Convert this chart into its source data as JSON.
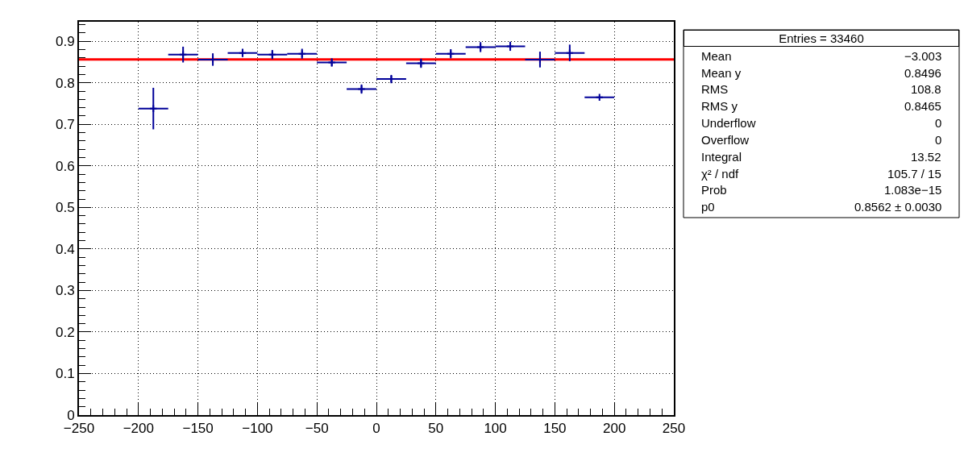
{
  "chart_data": {
    "type": "scatter",
    "x": [
      -187.5,
      -162.5,
      -137.5,
      -112.5,
      -87.5,
      -62.5,
      -37.5,
      -12.5,
      12.5,
      37.5,
      62.5,
      87.5,
      112.5,
      137.5,
      162.5,
      187.5
    ],
    "series": [
      {
        "color": "#000099",
        "marker": "cross",
        "values": [
          0.738,
          0.868,
          0.856,
          0.872,
          0.868,
          0.87,
          0.849,
          0.785,
          0.809,
          0.847,
          0.87,
          0.886,
          0.888,
          0.856,
          0.872,
          0.765
        ],
        "errors": [
          0.05,
          0.019,
          0.015,
          0.01,
          0.011,
          0.012,
          0.01,
          0.011,
          0.01,
          0.011,
          0.011,
          0.012,
          0.011,
          0.019,
          0.02,
          null
        ],
        "xerrors": [
          12.5,
          12.5,
          12.5,
          12.5,
          12.5,
          12.5,
          12.5,
          12.5,
          12.5,
          12.5,
          12.5,
          12.5,
          12.5,
          12.5,
          12.5,
          12.5
        ]
      },
      {
        "type": "line",
        "color": "#ff0000",
        "x": [
          -250,
          250
        ],
        "values": [
          0.8562,
          0.8562
        ]
      }
    ],
    "grid": true,
    "xlim": [
      -250,
      250
    ],
    "ylim": [
      0,
      0.947
    ],
    "xticks": [
      {
        "value": -250,
        "label": "−250"
      },
      {
        "value": -240,
        "label": null
      },
      {
        "value": -230,
        "label": null
      },
      {
        "value": -220,
        "label": null
      },
      {
        "value": -210,
        "label": null
      },
      {
        "value": -200,
        "label": "−200"
      },
      {
        "value": -190,
        "label": null
      },
      {
        "value": -180,
        "label": null
      },
      {
        "value": -170,
        "label": null
      },
      {
        "value": -160,
        "label": null
      },
      {
        "value": -150,
        "label": "−150"
      },
      {
        "value": -140,
        "label": null
      },
      {
        "value": -130,
        "label": null
      },
      {
        "value": -120,
        "label": null
      },
      {
        "value": -110,
        "label": null
      },
      {
        "value": -100,
        "label": "−100"
      },
      {
        "value": -90,
        "label": null
      },
      {
        "value": -80,
        "label": null
      },
      {
        "value": -70,
        "label": null
      },
      {
        "value": -60,
        "label": null
      },
      {
        "value": -50,
        "label": "−50"
      },
      {
        "value": -40,
        "label": null
      },
      {
        "value": -30,
        "label": null
      },
      {
        "value": -20,
        "label": null
      },
      {
        "value": -10,
        "label": null
      },
      0,
      {
        "value": 10,
        "label": null
      },
      {
        "value": 20,
        "label": null
      },
      {
        "value": 30,
        "label": null
      },
      {
        "value": 40,
        "label": null
      },
      50,
      {
        "value": 60,
        "label": null
      },
      {
        "value": 70,
        "label": null
      },
      {
        "value": 80,
        "label": null
      },
      {
        "value": 90,
        "label": null
      },
      100,
      {
        "value": 110,
        "label": null
      },
      {
        "value": 120,
        "label": null
      },
      {
        "value": 130,
        "label": null
      },
      {
        "value": 140,
        "label": null
      },
      150,
      {
        "value": 160,
        "label": null
      },
      {
        "value": 170,
        "label": null
      },
      {
        "value": 180,
        "label": null
      },
      {
        "value": 190,
        "label": null
      },
      200,
      {
        "value": 210,
        "label": null
      },
      {
        "value": 220,
        "label": null
      },
      {
        "value": 230,
        "label": null
      },
      {
        "value": 240,
        "label": null
      },
      250
    ],
    "yticks": [
      0,
      {
        "value": 0.02,
        "label": null
      },
      {
        "value": 0.04,
        "label": null
      },
      {
        "value": 0.06,
        "label": null
      },
      {
        "value": 0.08,
        "label": null
      },
      0.1,
      {
        "value": 0.12,
        "label": null
      },
      {
        "value": 0.14,
        "label": null
      },
      {
        "value": 0.16,
        "label": null
      },
      {
        "value": 0.18,
        "label": null
      },
      0.2,
      {
        "value": 0.22,
        "label": null
      },
      {
        "value": 0.24,
        "label": null
      },
      {
        "value": 0.26,
        "label": null
      },
      {
        "value": 0.28,
        "label": null
      },
      0.3,
      {
        "value": 0.32,
        "label": null
      },
      {
        "value": 0.34,
        "label": null
      },
      {
        "value": 0.36,
        "label": null
      },
      {
        "value": 0.38,
        "label": null
      },
      0.4,
      {
        "value": 0.42,
        "label": null
      },
      {
        "value": 0.44,
        "label": null
      },
      {
        "value": 0.46,
        "label": null
      },
      {
        "value": 0.48,
        "label": null
      },
      0.5,
      {
        "value": 0.52,
        "label": null
      },
      {
        "value": 0.54,
        "label": null
      },
      {
        "value": 0.56,
        "label": null
      },
      {
        "value": 0.58,
        "label": null
      },
      0.6,
      {
        "value": 0.62,
        "label": null
      },
      {
        "value": 0.64,
        "label": null
      },
      {
        "value": 0.66,
        "label": null
      },
      {
        "value": 0.68,
        "label": null
      },
      0.7,
      {
        "value": 0.72,
        "label": null
      },
      {
        "value": 0.74,
        "label": null
      },
      {
        "value": 0.76,
        "label": null
      },
      {
        "value": 0.78,
        "label": null
      },
      0.8,
      {
        "value": 0.82,
        "label": null
      },
      {
        "value": 0.84,
        "label": null
      },
      {
        "value": 0.86,
        "label": null
      },
      {
        "value": 0.88,
        "label": null
      },
      0.9,
      {
        "value": 0.92,
        "label": null
      },
      {
        "value": 0.94,
        "label": null
      }
    ],
    "annotations": [
      "Entries = 33460",
      "Mean",
      "−3.003",
      "Mean y",
      "0.8496",
      "RMS",
      "108.8",
      "RMS y",
      "0.8465",
      "Underflow",
      "0",
      "Overflow",
      "0",
      "Integral",
      "13.52",
      "χ² / ndf",
      "105.7 / 15",
      "Prob",
      "1.083e−15",
      "p0",
      "0.8562 ± 0.0030"
    ]
  }
}
